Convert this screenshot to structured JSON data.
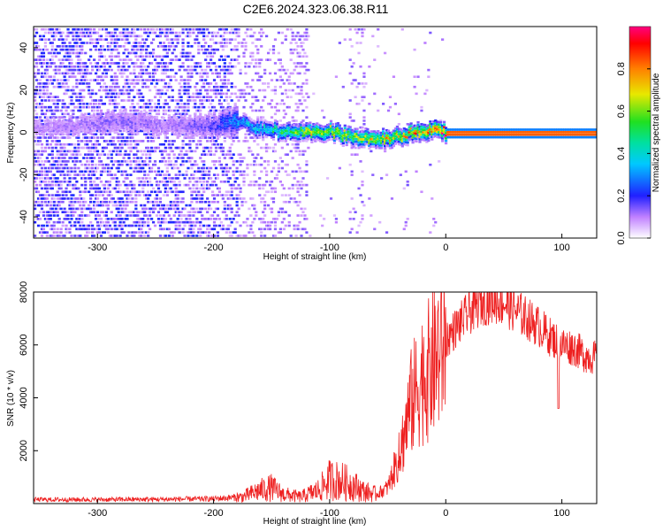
{
  "title": "C2E6.2024.323.06.38.R11",
  "chart_data": [
    {
      "type": "heatmap",
      "xlabel": "Height of straight line (km)",
      "ylabel": "Frequency (Hz)",
      "xlim": [
        -355,
        130
      ],
      "ylim": [
        -50,
        50
      ],
      "xticks": [
        "-300",
        "-200",
        "-100",
        "0",
        "100"
      ],
      "yticks": [
        "40",
        "20",
        "0",
        "-20",
        "-40"
      ],
      "colorbar": {
        "label": "Normalized spectral amplitude",
        "range": [
          0,
          1
        ],
        "ticks": [
          "0.0",
          "0.2",
          "0.4",
          "0.6",
          "0.8"
        ],
        "colormap": "white-purple-blue-cyan-green-yellow-red"
      },
      "ridge": {
        "x": [
          -355,
          -320,
          -280,
          -240,
          -200,
          -180,
          -160,
          -140,
          -120,
          -100,
          -80,
          -60,
          -40,
          -20,
          -10,
          0,
          130
        ],
        "frequency_hz": [
          2,
          4,
          6,
          3,
          4,
          6,
          2,
          1,
          1,
          1,
          -2,
          -3,
          -1,
          1,
          2,
          0,
          0
        ],
        "amplitude": [
          0.1,
          0.12,
          0.15,
          0.12,
          0.18,
          0.35,
          0.45,
          0.55,
          0.7,
          0.75,
          0.7,
          0.75,
          0.8,
          0.85,
          0.9,
          0.95,
          0.95
        ]
      }
    },
    {
      "type": "line",
      "xlabel": "Height of straight line (km)",
      "ylabel": "SNR (10 * v/v)",
      "xlim": [
        -355,
        130
      ],
      "ylim": [
        0,
        8000
      ],
      "xticks": [
        "-300",
        "-200",
        "-100",
        "0",
        "100"
      ],
      "yticks": [
        "8000",
        "6000",
        "4000",
        "2000"
      ],
      "color": "#ee2020",
      "envelope": {
        "x": [
          -355,
          -300,
          -250,
          -200,
          -175,
          -160,
          -150,
          -140,
          -125,
          -110,
          -100,
          -90,
          -80,
          -70,
          -60,
          -50,
          -40,
          -30,
          -20,
          -15,
          -10,
          -5,
          0,
          10,
          20,
          30,
          40,
          50,
          60,
          70,
          80,
          90,
          100,
          110,
          120,
          130
        ],
        "snr": [
          150,
          150,
          160,
          180,
          250,
          500,
          600,
          350,
          250,
          500,
          900,
          850,
          700,
          450,
          350,
          600,
          1800,
          3800,
          4800,
          5000,
          5400,
          5800,
          6200,
          6700,
          7200,
          7600,
          7700,
          7600,
          7300,
          7000,
          6700,
          6300,
          6000,
          5900,
          5600,
          5500
        ]
      }
    }
  ]
}
